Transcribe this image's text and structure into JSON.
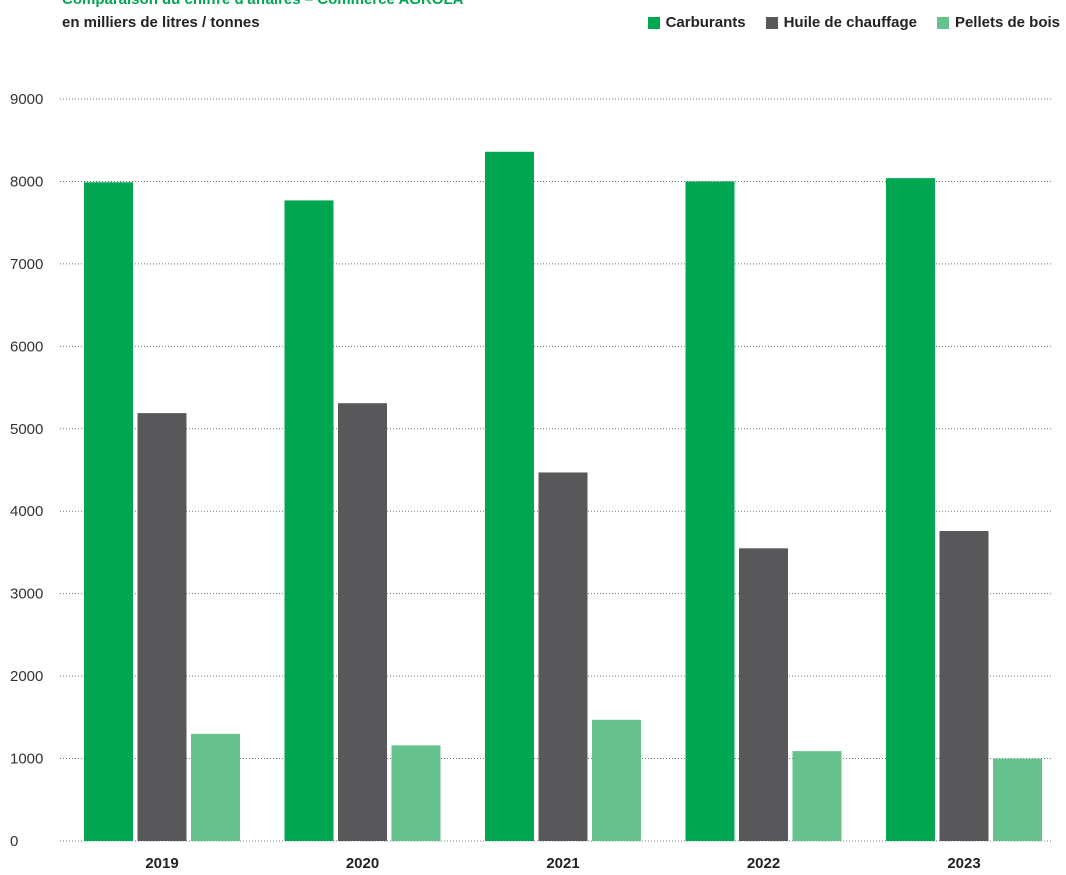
{
  "chart_data": {
    "type": "bar",
    "title": "Comparaison du chiffre d'affaires – Commerce AGROLA",
    "subtitle": "en milliers de litres / tonnes",
    "categories": [
      "2019",
      "2020",
      "2021",
      "2022",
      "2023"
    ],
    "series": [
      {
        "name": "Carburants",
        "color": "#00a650",
        "values": [
          7990,
          7770,
          8360,
          8000,
          8040
        ]
      },
      {
        "name": "Huile de chauffage",
        "color": "#58585a",
        "values": [
          5190,
          5310,
          4470,
          3550,
          3760
        ]
      },
      {
        "name": "Pellets de bois",
        "color": "#66c28d",
        "values": [
          1300,
          1160,
          1470,
          1090,
          1000
        ]
      }
    ],
    "yticks": [
      "0",
      "1000",
      "2000",
      "3000",
      "4000",
      "5000",
      "6000",
      "7000",
      "8000",
      "9000"
    ],
    "ylim": [
      0,
      9000
    ],
    "grid": true,
    "legend_position": "top-right"
  }
}
